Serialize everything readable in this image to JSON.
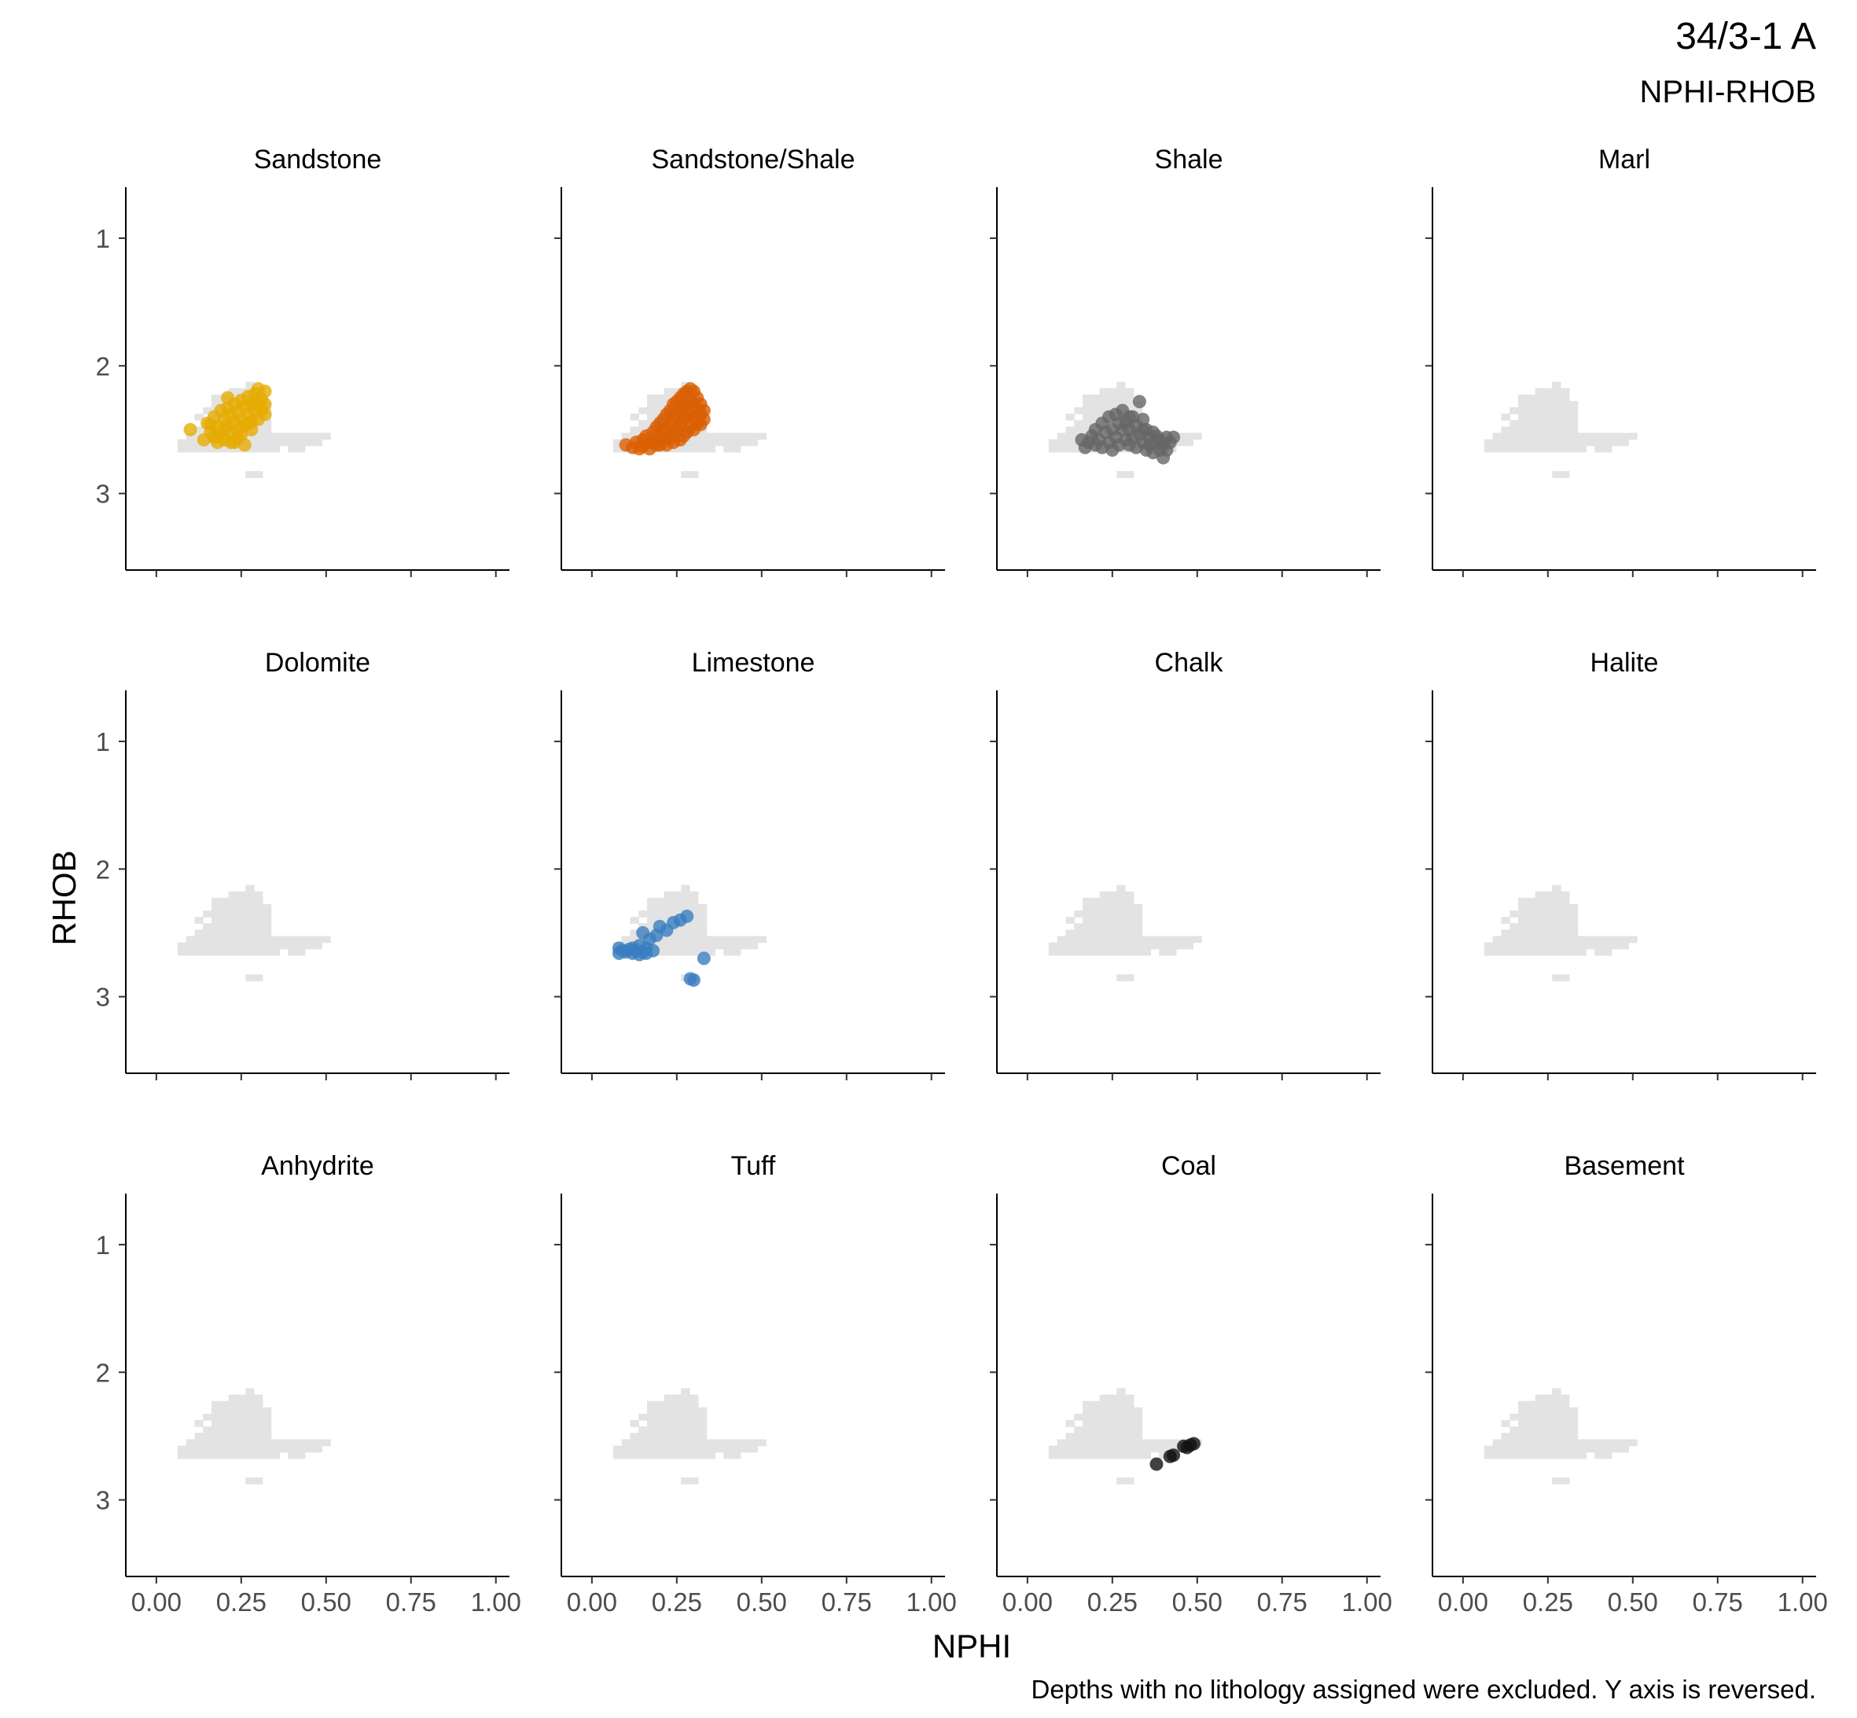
{
  "chart_data": {
    "type": "scatter",
    "title": "34/3-1 A",
    "subtitle": "NPHI-RHOB",
    "xlabel": "NPHI",
    "ylabel": "RHOB",
    "caption": "Depths with no lithology assigned were excluded. Y axis is reversed.",
    "xlim": [
      -0.09,
      1.04
    ],
    "ylim": [
      3.6,
      0.6
    ],
    "y_reversed": true,
    "grid": false,
    "xticks": [
      0.0,
      0.25,
      0.5,
      0.75,
      1.0
    ],
    "xtick_labels": [
      "0.00",
      "0.25",
      "0.50",
      "0.75",
      "1.00"
    ],
    "yticks": [
      1,
      2,
      3
    ],
    "ytick_labels": [
      "1",
      "2",
      "3"
    ],
    "background_cell_color": "#e3e3e3",
    "background_cells": [
      [
        0.275,
        2.15
      ],
      [
        0.225,
        2.2
      ],
      [
        0.25,
        2.2
      ],
      [
        0.275,
        2.2
      ],
      [
        0.3,
        2.2
      ],
      [
        0.175,
        2.25
      ],
      [
        0.2,
        2.25
      ],
      [
        0.225,
        2.25
      ],
      [
        0.25,
        2.25
      ],
      [
        0.275,
        2.25
      ],
      [
        0.3,
        2.25
      ],
      [
        0.175,
        2.3
      ],
      [
        0.2,
        2.3
      ],
      [
        0.225,
        2.3
      ],
      [
        0.25,
        2.3
      ],
      [
        0.275,
        2.3
      ],
      [
        0.3,
        2.3
      ],
      [
        0.325,
        2.3
      ],
      [
        0.15,
        2.35
      ],
      [
        0.175,
        2.35
      ],
      [
        0.2,
        2.35
      ],
      [
        0.225,
        2.35
      ],
      [
        0.25,
        2.35
      ],
      [
        0.275,
        2.35
      ],
      [
        0.3,
        2.35
      ],
      [
        0.325,
        2.35
      ],
      [
        0.125,
        2.4
      ],
      [
        0.175,
        2.4
      ],
      [
        0.2,
        2.4
      ],
      [
        0.225,
        2.4
      ],
      [
        0.25,
        2.4
      ],
      [
        0.275,
        2.4
      ],
      [
        0.3,
        2.4
      ],
      [
        0.325,
        2.4
      ],
      [
        0.15,
        2.45
      ],
      [
        0.175,
        2.45
      ],
      [
        0.2,
        2.45
      ],
      [
        0.225,
        2.45
      ],
      [
        0.25,
        2.45
      ],
      [
        0.275,
        2.45
      ],
      [
        0.3,
        2.45
      ],
      [
        0.325,
        2.45
      ],
      [
        0.125,
        2.5
      ],
      [
        0.15,
        2.5
      ],
      [
        0.175,
        2.5
      ],
      [
        0.2,
        2.5
      ],
      [
        0.225,
        2.5
      ],
      [
        0.25,
        2.5
      ],
      [
        0.275,
        2.5
      ],
      [
        0.3,
        2.5
      ],
      [
        0.325,
        2.5
      ],
      [
        0.1,
        2.55
      ],
      [
        0.125,
        2.55
      ],
      [
        0.15,
        2.55
      ],
      [
        0.175,
        2.55
      ],
      [
        0.2,
        2.55
      ],
      [
        0.225,
        2.55
      ],
      [
        0.25,
        2.55
      ],
      [
        0.275,
        2.55
      ],
      [
        0.3,
        2.55
      ],
      [
        0.325,
        2.55
      ],
      [
        0.35,
        2.55
      ],
      [
        0.375,
        2.55
      ],
      [
        0.4,
        2.55
      ],
      [
        0.425,
        2.55
      ],
      [
        0.45,
        2.55
      ],
      [
        0.475,
        2.55
      ],
      [
        0.5,
        2.55
      ],
      [
        0.075,
        2.6
      ],
      [
        0.1,
        2.6
      ],
      [
        0.125,
        2.6
      ],
      [
        0.15,
        2.6
      ],
      [
        0.175,
        2.6
      ],
      [
        0.2,
        2.6
      ],
      [
        0.225,
        2.6
      ],
      [
        0.25,
        2.6
      ],
      [
        0.275,
        2.6
      ],
      [
        0.3,
        2.6
      ],
      [
        0.325,
        2.6
      ],
      [
        0.35,
        2.6
      ],
      [
        0.375,
        2.6
      ],
      [
        0.4,
        2.6
      ],
      [
        0.425,
        2.6
      ],
      [
        0.45,
        2.6
      ],
      [
        0.475,
        2.6
      ],
      [
        0.075,
        2.65
      ],
      [
        0.1,
        2.65
      ],
      [
        0.125,
        2.65
      ],
      [
        0.15,
        2.65
      ],
      [
        0.175,
        2.65
      ],
      [
        0.2,
        2.65
      ],
      [
        0.225,
        2.65
      ],
      [
        0.25,
        2.65
      ],
      [
        0.275,
        2.65
      ],
      [
        0.3,
        2.65
      ],
      [
        0.325,
        2.65
      ],
      [
        0.35,
        2.65
      ],
      [
        0.4,
        2.65
      ],
      [
        0.425,
        2.65
      ],
      [
        0.275,
        2.85
      ],
      [
        0.3,
        2.85
      ]
    ],
    "panels": [
      {
        "name": "Sandstone",
        "color": "#e6ab02",
        "points": [
          [
            0.1,
            2.5
          ],
          [
            0.14,
            2.58
          ],
          [
            0.15,
            2.45
          ],
          [
            0.16,
            2.52
          ],
          [
            0.17,
            2.4
          ],
          [
            0.17,
            2.56
          ],
          [
            0.18,
            2.48
          ],
          [
            0.18,
            2.6
          ],
          [
            0.19,
            2.35
          ],
          [
            0.19,
            2.54
          ],
          [
            0.2,
            2.42
          ],
          [
            0.2,
            2.5
          ],
          [
            0.2,
            2.58
          ],
          [
            0.21,
            2.25
          ],
          [
            0.21,
            2.46
          ],
          [
            0.22,
            2.38
          ],
          [
            0.22,
            2.52
          ],
          [
            0.22,
            2.6
          ],
          [
            0.23,
            2.3
          ],
          [
            0.23,
            2.44
          ],
          [
            0.24,
            2.36
          ],
          [
            0.24,
            2.5
          ],
          [
            0.24,
            2.56
          ],
          [
            0.25,
            2.27
          ],
          [
            0.25,
            2.42
          ],
          [
            0.26,
            2.32
          ],
          [
            0.26,
            2.47
          ],
          [
            0.26,
            2.62
          ],
          [
            0.27,
            2.24
          ],
          [
            0.27,
            2.38
          ],
          [
            0.28,
            2.3
          ],
          [
            0.28,
            2.44
          ],
          [
            0.28,
            2.5
          ],
          [
            0.29,
            2.22
          ],
          [
            0.29,
            2.36
          ],
          [
            0.3,
            2.18
          ],
          [
            0.3,
            2.3
          ],
          [
            0.3,
            2.42
          ],
          [
            0.31,
            2.26
          ],
          [
            0.31,
            2.34
          ],
          [
            0.32,
            2.2
          ],
          [
            0.32,
            2.3
          ],
          [
            0.32,
            2.38
          ],
          [
            0.23,
            2.6
          ],
          [
            0.18,
            2.55
          ],
          [
            0.21,
            2.33
          ],
          [
            0.25,
            2.54
          ],
          [
            0.27,
            2.45
          ],
          [
            0.29,
            2.28
          ],
          [
            0.16,
            2.46
          ]
        ]
      },
      {
        "name": "Sandstone/Shale",
        "color": "#d95f02",
        "points": [
          [
            0.1,
            2.62
          ],
          [
            0.12,
            2.64
          ],
          [
            0.13,
            2.6
          ],
          [
            0.14,
            2.65
          ],
          [
            0.15,
            2.58
          ],
          [
            0.15,
            2.63
          ],
          [
            0.16,
            2.55
          ],
          [
            0.17,
            2.6
          ],
          [
            0.17,
            2.65
          ],
          [
            0.18,
            2.52
          ],
          [
            0.18,
            2.58
          ],
          [
            0.19,
            2.48
          ],
          [
            0.19,
            2.62
          ],
          [
            0.2,
            2.45
          ],
          [
            0.2,
            2.55
          ],
          [
            0.2,
            2.62
          ],
          [
            0.21,
            2.42
          ],
          [
            0.21,
            2.58
          ],
          [
            0.22,
            2.38
          ],
          [
            0.22,
            2.5
          ],
          [
            0.22,
            2.62
          ],
          [
            0.23,
            2.35
          ],
          [
            0.23,
            2.45
          ],
          [
            0.23,
            2.56
          ],
          [
            0.24,
            2.3
          ],
          [
            0.24,
            2.42
          ],
          [
            0.24,
            2.6
          ],
          [
            0.25,
            2.28
          ],
          [
            0.25,
            2.38
          ],
          [
            0.25,
            2.5
          ],
          [
            0.26,
            2.25
          ],
          [
            0.26,
            2.35
          ],
          [
            0.26,
            2.46
          ],
          [
            0.26,
            2.58
          ],
          [
            0.27,
            2.22
          ],
          [
            0.27,
            2.32
          ],
          [
            0.27,
            2.42
          ],
          [
            0.27,
            2.55
          ],
          [
            0.28,
            2.2
          ],
          [
            0.28,
            2.3
          ],
          [
            0.28,
            2.4
          ],
          [
            0.28,
            2.52
          ],
          [
            0.29,
            2.18
          ],
          [
            0.29,
            2.28
          ],
          [
            0.29,
            2.38
          ],
          [
            0.29,
            2.48
          ],
          [
            0.3,
            2.2
          ],
          [
            0.3,
            2.3
          ],
          [
            0.3,
            2.4
          ],
          [
            0.3,
            2.5
          ],
          [
            0.31,
            2.25
          ],
          [
            0.31,
            2.35
          ],
          [
            0.31,
            2.45
          ],
          [
            0.32,
            2.3
          ],
          [
            0.32,
            2.38
          ],
          [
            0.32,
            2.46
          ],
          [
            0.33,
            2.35
          ],
          [
            0.33,
            2.42
          ],
          [
            0.21,
            2.5
          ],
          [
            0.24,
            2.52
          ]
        ]
      },
      {
        "name": "Shale",
        "color": "#666666",
        "points": [
          [
            0.16,
            2.58
          ],
          [
            0.17,
            2.64
          ],
          [
            0.18,
            2.6
          ],
          [
            0.19,
            2.55
          ],
          [
            0.2,
            2.62
          ],
          [
            0.2,
            2.5
          ],
          [
            0.21,
            2.58
          ],
          [
            0.22,
            2.45
          ],
          [
            0.22,
            2.64
          ],
          [
            0.23,
            2.52
          ],
          [
            0.24,
            2.4
          ],
          [
            0.24,
            2.6
          ],
          [
            0.25,
            2.5
          ],
          [
            0.25,
            2.66
          ],
          [
            0.26,
            2.38
          ],
          [
            0.26,
            2.56
          ],
          [
            0.27,
            2.45
          ],
          [
            0.27,
            2.62
          ],
          [
            0.28,
            2.5
          ],
          [
            0.28,
            2.35
          ],
          [
            0.29,
            2.58
          ],
          [
            0.29,
            2.44
          ],
          [
            0.3,
            2.62
          ],
          [
            0.3,
            2.5
          ],
          [
            0.31,
            2.4
          ],
          [
            0.31,
            2.56
          ],
          [
            0.32,
            2.47
          ],
          [
            0.32,
            2.64
          ],
          [
            0.33,
            2.28
          ],
          [
            0.33,
            2.54
          ],
          [
            0.34,
            2.42
          ],
          [
            0.34,
            2.6
          ],
          [
            0.35,
            2.5
          ],
          [
            0.35,
            2.66
          ],
          [
            0.36,
            2.56
          ],
          [
            0.36,
            2.62
          ],
          [
            0.37,
            2.52
          ],
          [
            0.37,
            2.68
          ],
          [
            0.38,
            2.6
          ],
          [
            0.38,
            2.55
          ],
          [
            0.39,
            2.66
          ],
          [
            0.39,
            2.58
          ],
          [
            0.4,
            2.62
          ],
          [
            0.4,
            2.72
          ],
          [
            0.41,
            2.56
          ],
          [
            0.42,
            2.6
          ],
          [
            0.43,
            2.56
          ],
          [
            0.41,
            2.66
          ],
          [
            0.3,
            2.4
          ],
          [
            0.34,
            2.5
          ]
        ]
      },
      {
        "name": "Marl",
        "color": "#000000",
        "points": []
      },
      {
        "name": "Dolomite",
        "color": "#000000",
        "points": []
      },
      {
        "name": "Limestone",
        "color": "#3a7ebf",
        "points": [
          [
            0.08,
            2.62
          ],
          [
            0.08,
            2.66
          ],
          [
            0.09,
            2.64
          ],
          [
            0.1,
            2.65
          ],
          [
            0.11,
            2.63
          ],
          [
            0.12,
            2.66
          ],
          [
            0.13,
            2.64
          ],
          [
            0.14,
            2.67
          ],
          [
            0.14,
            2.6
          ],
          [
            0.15,
            2.65
          ],
          [
            0.15,
            2.5
          ],
          [
            0.16,
            2.62
          ],
          [
            0.17,
            2.55
          ],
          [
            0.18,
            2.64
          ],
          [
            0.19,
            2.52
          ],
          [
            0.2,
            2.45
          ],
          [
            0.22,
            2.48
          ],
          [
            0.24,
            2.42
          ],
          [
            0.26,
            2.4
          ],
          [
            0.28,
            2.37
          ],
          [
            0.3,
            2.87
          ],
          [
            0.29,
            2.86
          ],
          [
            0.33,
            2.7
          ],
          [
            0.12,
            2.62
          ],
          [
            0.16,
            2.66
          ]
        ]
      },
      {
        "name": "Chalk",
        "color": "#000000",
        "points": []
      },
      {
        "name": "Halite",
        "color": "#000000",
        "points": []
      },
      {
        "name": "Anhydrite",
        "color": "#000000",
        "points": []
      },
      {
        "name": "Tuff",
        "color": "#000000",
        "points": []
      },
      {
        "name": "Coal",
        "color": "#111111",
        "points": [
          [
            0.38,
            2.72
          ],
          [
            0.42,
            2.66
          ],
          [
            0.43,
            2.65
          ],
          [
            0.46,
            2.58
          ],
          [
            0.47,
            2.59
          ],
          [
            0.48,
            2.57
          ],
          [
            0.49,
            2.56
          ]
        ]
      },
      {
        "name": "Basement",
        "color": "#000000",
        "points": []
      }
    ]
  }
}
